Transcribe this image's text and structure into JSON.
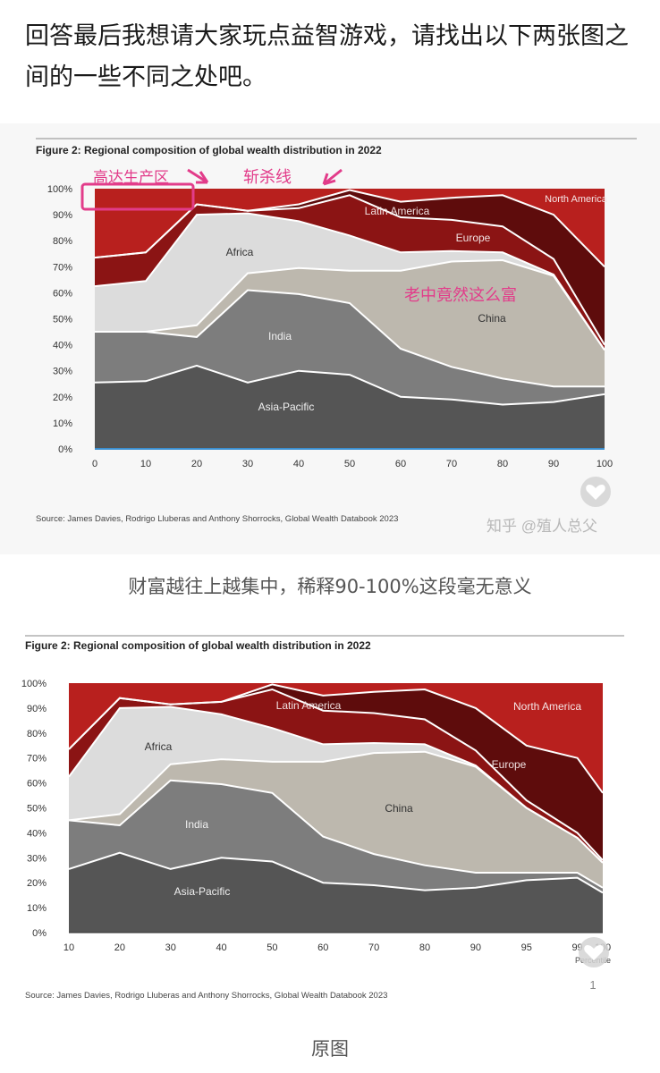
{
  "post": {
    "paragraph": "回答最后我想请大家玩点益智游戏，请找出以下两张图之间的一些不同之处吧。",
    "caption1": "财富越往上越集中，稀释90-100%这段毫无意义",
    "caption2": "原图"
  },
  "annotations": {
    "box_label": "高达生产区",
    "line_label": "斩杀线",
    "china_note": "老中竟然这么富",
    "color": "#e23c8a"
  },
  "watermark": "知乎 @殖人总父",
  "like_count": "1",
  "icons": [
    "heart-icon",
    "arrow-icon"
  ],
  "colors": {
    "asia_pacific": "#555555",
    "india": "#7d7d7d",
    "china": "#bdb8ae",
    "africa": "#dcdcdc",
    "latin_america": "#8b1414",
    "europe": "#5e0c0c",
    "north_america": "#b8201e"
  },
  "chart_data": [
    {
      "type": "area",
      "title": "Figure 2: Regional composition of global wealth distribution in 2022",
      "source": "Source: James Davies, Rodrigo Lluberas and Anthony Shorrocks, Global Wealth Databook 2023",
      "x": [
        0,
        10,
        20,
        30,
        40,
        50,
        60,
        70,
        80,
        90,
        100
      ],
      "xticks": [
        "0",
        "10",
        "20",
        "30",
        "40",
        "50",
        "60",
        "70",
        "80",
        "90",
        "100"
      ],
      "yticks": [
        "0%",
        "10%",
        "20%",
        "30%",
        "40%",
        "50%",
        "60%",
        "70%",
        "80%",
        "90%",
        "100%"
      ],
      "ylim": [
        0,
        100
      ],
      "series": [
        {
          "name": "Asia-Pacific",
          "values": [
            25.5,
            26,
            32,
            25.5,
            30,
            28.5,
            20,
            19,
            17,
            18,
            21
          ]
        },
        {
          "name": "India",
          "values": [
            19.5,
            19,
            11,
            35.5,
            29.5,
            27.5,
            18.5,
            12.5,
            10,
            6,
            3
          ]
        },
        {
          "name": "China",
          "values": [
            0,
            0,
            4.5,
            6.5,
            10,
            12.5,
            30,
            40.5,
            45.5,
            42.5,
            14
          ]
        },
        {
          "name": "Africa",
          "values": [
            17.5,
            19.5,
            42.5,
            23,
            18,
            13.5,
            7,
            4,
            3,
            0.5,
            0
          ]
        },
        {
          "name": "Latin America",
          "values": [
            11,
            11,
            4,
            1,
            5,
            15.5,
            13.5,
            12,
            10,
            6,
            2
          ]
        },
        {
          "name": "Europe",
          "values": [
            0,
            0,
            0,
            0,
            1.5,
            2,
            6,
            8.5,
            12,
            17,
            30
          ]
        },
        {
          "name": "North America",
          "values": [
            26.5,
            24.5,
            6,
            8.5,
            6,
            0.5,
            5,
            3.5,
            2.5,
            10,
            30
          ]
        }
      ]
    },
    {
      "type": "area",
      "title": "Figure 2: Regional composition of global wealth distribution in 2022",
      "source": "Source: James Davies, Rodrigo Lluberas and Anthony Shorrocks, Global Wealth Databook 2023",
      "x": [
        10,
        20,
        30,
        40,
        50,
        60,
        70,
        80,
        90,
        95,
        99,
        100
      ],
      "xticks": [
        "10",
        "20",
        "30",
        "40",
        "50",
        "60",
        "70",
        "80",
        "90",
        "95",
        "99",
        "100"
      ],
      "xlabel": "Percentile",
      "yticks": [
        "0%",
        "10%",
        "20%",
        "30%",
        "40%",
        "50%",
        "60%",
        "70%",
        "80%",
        "90%",
        "100%"
      ],
      "ylim": [
        0,
        100
      ],
      "series": [
        {
          "name": "Asia-Pacific",
          "values": [
            25.5,
            32,
            25.5,
            30,
            28.5,
            20,
            19,
            17,
            18,
            21,
            22,
            16
          ]
        },
        {
          "name": "India",
          "values": [
            19.5,
            11,
            35.5,
            29.5,
            27.5,
            18.5,
            12.5,
            10,
            6,
            3,
            2,
            2
          ]
        },
        {
          "name": "China",
          "values": [
            0,
            4.5,
            6.5,
            10,
            12.5,
            30,
            40.5,
            45.5,
            42.5,
            26,
            14,
            10
          ]
        },
        {
          "name": "Africa",
          "values": [
            17.5,
            42.5,
            23,
            18,
            13.5,
            7,
            4,
            3,
            0.5,
            0,
            0,
            0
          ]
        },
        {
          "name": "Latin America",
          "values": [
            11,
            4,
            1,
            5,
            15.5,
            13.5,
            12,
            10,
            6,
            3,
            2,
            1
          ]
        },
        {
          "name": "Europe",
          "values": [
            0,
            0,
            0,
            0,
            2,
            6,
            8.5,
            12,
            17,
            22,
            30,
            27
          ]
        },
        {
          "name": "North America",
          "values": [
            26.5,
            6,
            8.5,
            7.5,
            0.5,
            5,
            3.5,
            2.5,
            10,
            25,
            30,
            44
          ]
        }
      ]
    }
  ]
}
